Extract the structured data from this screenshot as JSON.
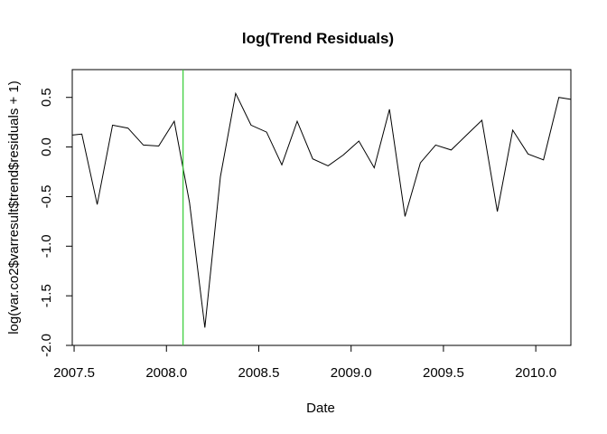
{
  "chart_data": {
    "type": "line",
    "title": "log(Trend Residuals)",
    "xlabel": "Date",
    "ylabel": "log(var.co2$varresult$trend$residuals + 1)",
    "xlim": [
      2007.49,
      2010.19
    ],
    "ylim": [
      -2.0,
      0.78
    ],
    "x_ticks": [
      {
        "value": 2007.5,
        "label": "2007.5"
      },
      {
        "value": 2008.0,
        "label": "2008.0"
      },
      {
        "value": 2008.5,
        "label": "2008.5"
      },
      {
        "value": 2009.0,
        "label": "2009.0"
      },
      {
        "value": 2009.5,
        "label": "2009.5"
      },
      {
        "value": 2010.0,
        "label": "2010.0"
      }
    ],
    "y_ticks": [
      {
        "value": -2.0,
        "label": "-2.0"
      },
      {
        "value": -1.5,
        "label": "-1.5"
      },
      {
        "value": -1.0,
        "label": "-1.0"
      },
      {
        "value": -0.5,
        "label": "-0.5"
      },
      {
        "value": 0.0,
        "label": "0.0"
      },
      {
        "value": 0.5,
        "label": "0.5"
      }
    ],
    "series": [
      {
        "color": "#000000",
        "x": [
          2007.49,
          2007.542,
          2007.625,
          2007.708,
          2007.792,
          2007.875,
          2007.958,
          2008.042,
          2008.125,
          2008.208,
          2008.292,
          2008.375,
          2008.458,
          2008.542,
          2008.625,
          2008.708,
          2008.792,
          2008.875,
          2008.958,
          2009.042,
          2009.125,
          2009.208,
          2009.292,
          2009.375,
          2009.458,
          2009.542,
          2009.625,
          2009.708,
          2009.792,
          2009.875,
          2009.958,
          2010.042,
          2010.125,
          2010.19
        ],
        "y": [
          0.12,
          0.13,
          -0.58,
          0.22,
          0.19,
          0.02,
          0.01,
          0.26,
          -0.56,
          -1.82,
          -0.3,
          0.54,
          0.22,
          0.15,
          -0.18,
          0.26,
          -0.12,
          -0.19,
          -0.08,
          0.06,
          -0.21,
          0.38,
          -0.7,
          -0.16,
          0.02,
          -0.03,
          0.12,
          0.27,
          -0.65,
          0.17,
          -0.07,
          -0.13,
          0.5,
          0.48
        ]
      }
    ],
    "vertical_line": {
      "x": 2008.09,
      "color": "#33cc33"
    },
    "grid": false,
    "legend": "none"
  }
}
